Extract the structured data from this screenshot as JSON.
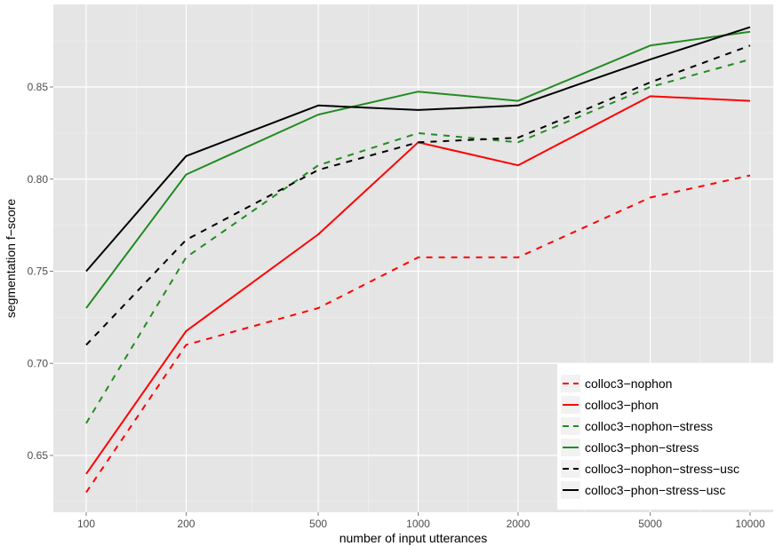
{
  "chart_data": {
    "type": "line",
    "title": "",
    "xlabel": "number of input utterances",
    "ylabel": "segmentation f−score",
    "x_scale": "log",
    "x": [
      100,
      200,
      500,
      1000,
      2000,
      5000,
      10000
    ],
    "x_tick_labels": [
      "100",
      "200",
      "500",
      "1000",
      "2000",
      "5000",
      "10000"
    ],
    "y_ticks": [
      0.65,
      0.7,
      0.75,
      0.8,
      0.85
    ],
    "y_tick_labels": [
      "0.65",
      "0.70",
      "0.75",
      "0.80",
      "0.85"
    ],
    "ylim": [
      0.625,
      0.888
    ],
    "grid": true,
    "legend_position": "bottom-right",
    "series": [
      {
        "name": "colloc3−nophon",
        "color": "#ff0000",
        "dashed": true,
        "values": [
          0.63,
          0.71,
          0.73,
          0.7575,
          0.7575,
          0.79,
          0.802
        ]
      },
      {
        "name": "colloc3−phon",
        "color": "#ff0000",
        "dashed": false,
        "values": [
          0.64,
          0.7175,
          0.77,
          0.82,
          0.8075,
          0.845,
          0.8425
        ]
      },
      {
        "name": "colloc3−nophon−stress",
        "color": "#228b22",
        "dashed": true,
        "values": [
          0.6675,
          0.7575,
          0.8075,
          0.825,
          0.82,
          0.85,
          0.865
        ]
      },
      {
        "name": "colloc3−phon−stress",
        "color": "#228b22",
        "dashed": false,
        "values": [
          0.73,
          0.8025,
          0.835,
          0.8475,
          0.8425,
          0.8725,
          0.88
        ]
      },
      {
        "name": "colloc3−nophon−stress−usc",
        "color": "#000000",
        "dashed": true,
        "values": [
          0.71,
          0.767,
          0.805,
          0.82,
          0.8225,
          0.8525,
          0.8725
        ]
      },
      {
        "name": "colloc3−phon−stress−usc",
        "color": "#000000",
        "dashed": false,
        "values": [
          0.75,
          0.8125,
          0.84,
          0.8375,
          0.84,
          0.865,
          0.8825
        ]
      }
    ]
  }
}
